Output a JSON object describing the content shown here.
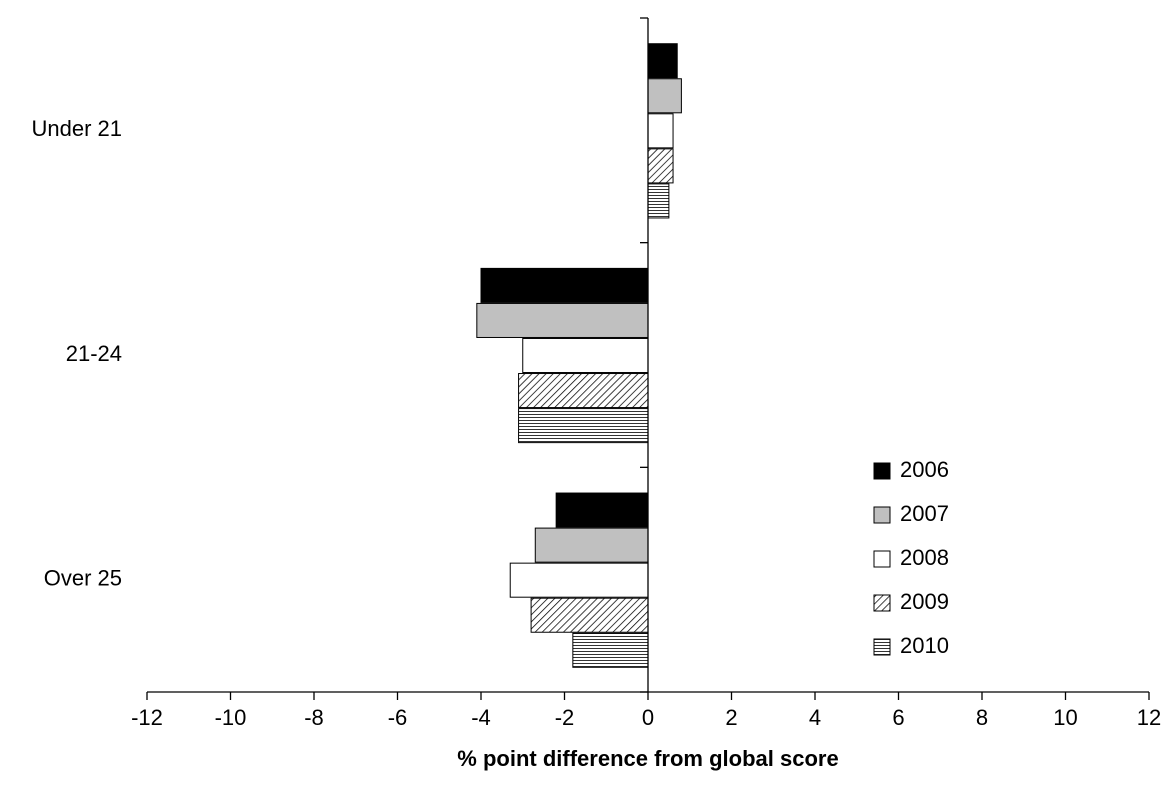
{
  "chart_data": {
    "type": "hbar",
    "xlabel": "% point difference from global score",
    "categories": [
      "Under 21",
      "21-24",
      "Over 25"
    ],
    "series": [
      {
        "name": "2006",
        "color": "#000000",
        "values": [
          0.7,
          -4.0,
          -2.2
        ]
      },
      {
        "name": "2007",
        "color": "#c0c0c0",
        "values": [
          0.8,
          -4.1,
          -2.7
        ]
      },
      {
        "name": "2008",
        "color": "#ffffff",
        "values": [
          0.6,
          -3.0,
          -3.3
        ]
      },
      {
        "name": "2009",
        "color": "#ffffff",
        "pattern": "diagonal",
        "values": [
          0.6,
          -3.1,
          -2.8
        ]
      },
      {
        "name": "2010",
        "color": "#ffffff",
        "pattern": "horizontal",
        "values": [
          0.5,
          -3.1,
          -1.8
        ]
      }
    ],
    "xlim": [
      -12,
      12
    ],
    "xticks": [
      -12,
      -10,
      -8,
      -6,
      -4,
      -2,
      0,
      2,
      4,
      6,
      8,
      10,
      12
    ],
    "legend": "lower right"
  }
}
